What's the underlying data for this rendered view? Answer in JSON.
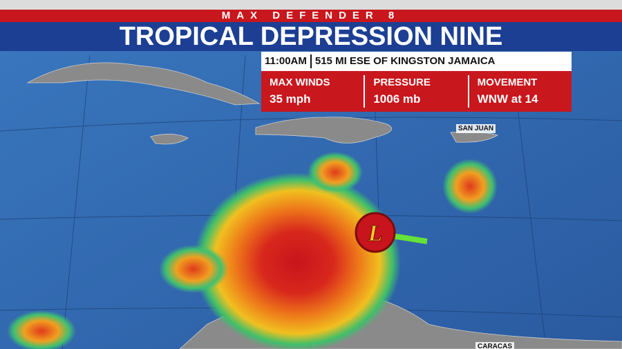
{
  "header": {
    "brand": "MAX DEFENDER 8",
    "title": "TROPICAL DEPRESSION NINE"
  },
  "info": {
    "time": "11:00AM",
    "location": "515 MI ESE OF KINGSTON JAMAICA",
    "stats": [
      {
        "label": "MAX WINDS",
        "value": "35 mph"
      },
      {
        "label": "PRESSURE",
        "value": "1006 mb"
      },
      {
        "label": "MOVEMENT",
        "value": "WNW at 14"
      }
    ]
  },
  "map": {
    "labels": [
      "SAN JUAN",
      "CARACAS"
    ],
    "storm_symbol": "L"
  }
}
